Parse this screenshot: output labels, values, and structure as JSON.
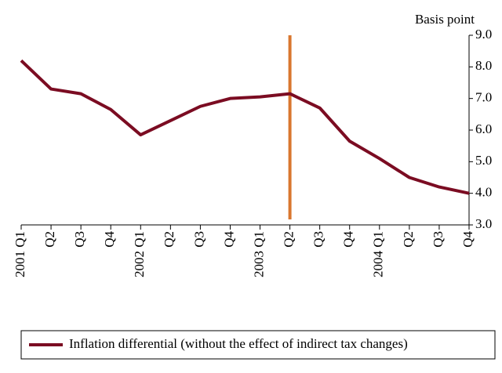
{
  "chart_data": {
    "type": "line",
    "y_axis_label": "Basis point",
    "categories": [
      "2001 Q1",
      "Q2",
      "Q3",
      "Q4",
      "2002 Q1",
      "Q2",
      "Q3",
      "Q4",
      "2003 Q1",
      "Q2",
      "Q3",
      "Q4",
      "2004 Q1",
      "Q2",
      "Q3",
      "Q4"
    ],
    "series": [
      {
        "name": "Inflation differential (without the effect of indirect tax changes)",
        "color": "#7b0c22",
        "values": [
          8.2,
          7.3,
          7.15,
          6.65,
          5.85,
          6.3,
          6.75,
          7.0,
          7.05,
          7.15,
          6.7,
          5.65,
          5.1,
          4.5,
          4.2,
          4.0
        ]
      }
    ],
    "ylim": [
      3,
      9
    ],
    "yticks": [
      {
        "value": 3,
        "label": "3.0"
      },
      {
        "value": 4,
        "label": "4.0"
      },
      {
        "value": 5,
        "label": "5.0"
      },
      {
        "value": 6,
        "label": "6.0"
      },
      {
        "value": 7,
        "label": "7.0"
      },
      {
        "value": 8,
        "label": "8.0"
      },
      {
        "value": 9,
        "label": "9.0"
      }
    ],
    "y_axis_side": "right",
    "grid": false,
    "vertical_line": {
      "index": 9,
      "color": "#d9772f"
    },
    "legend": "bottom"
  }
}
